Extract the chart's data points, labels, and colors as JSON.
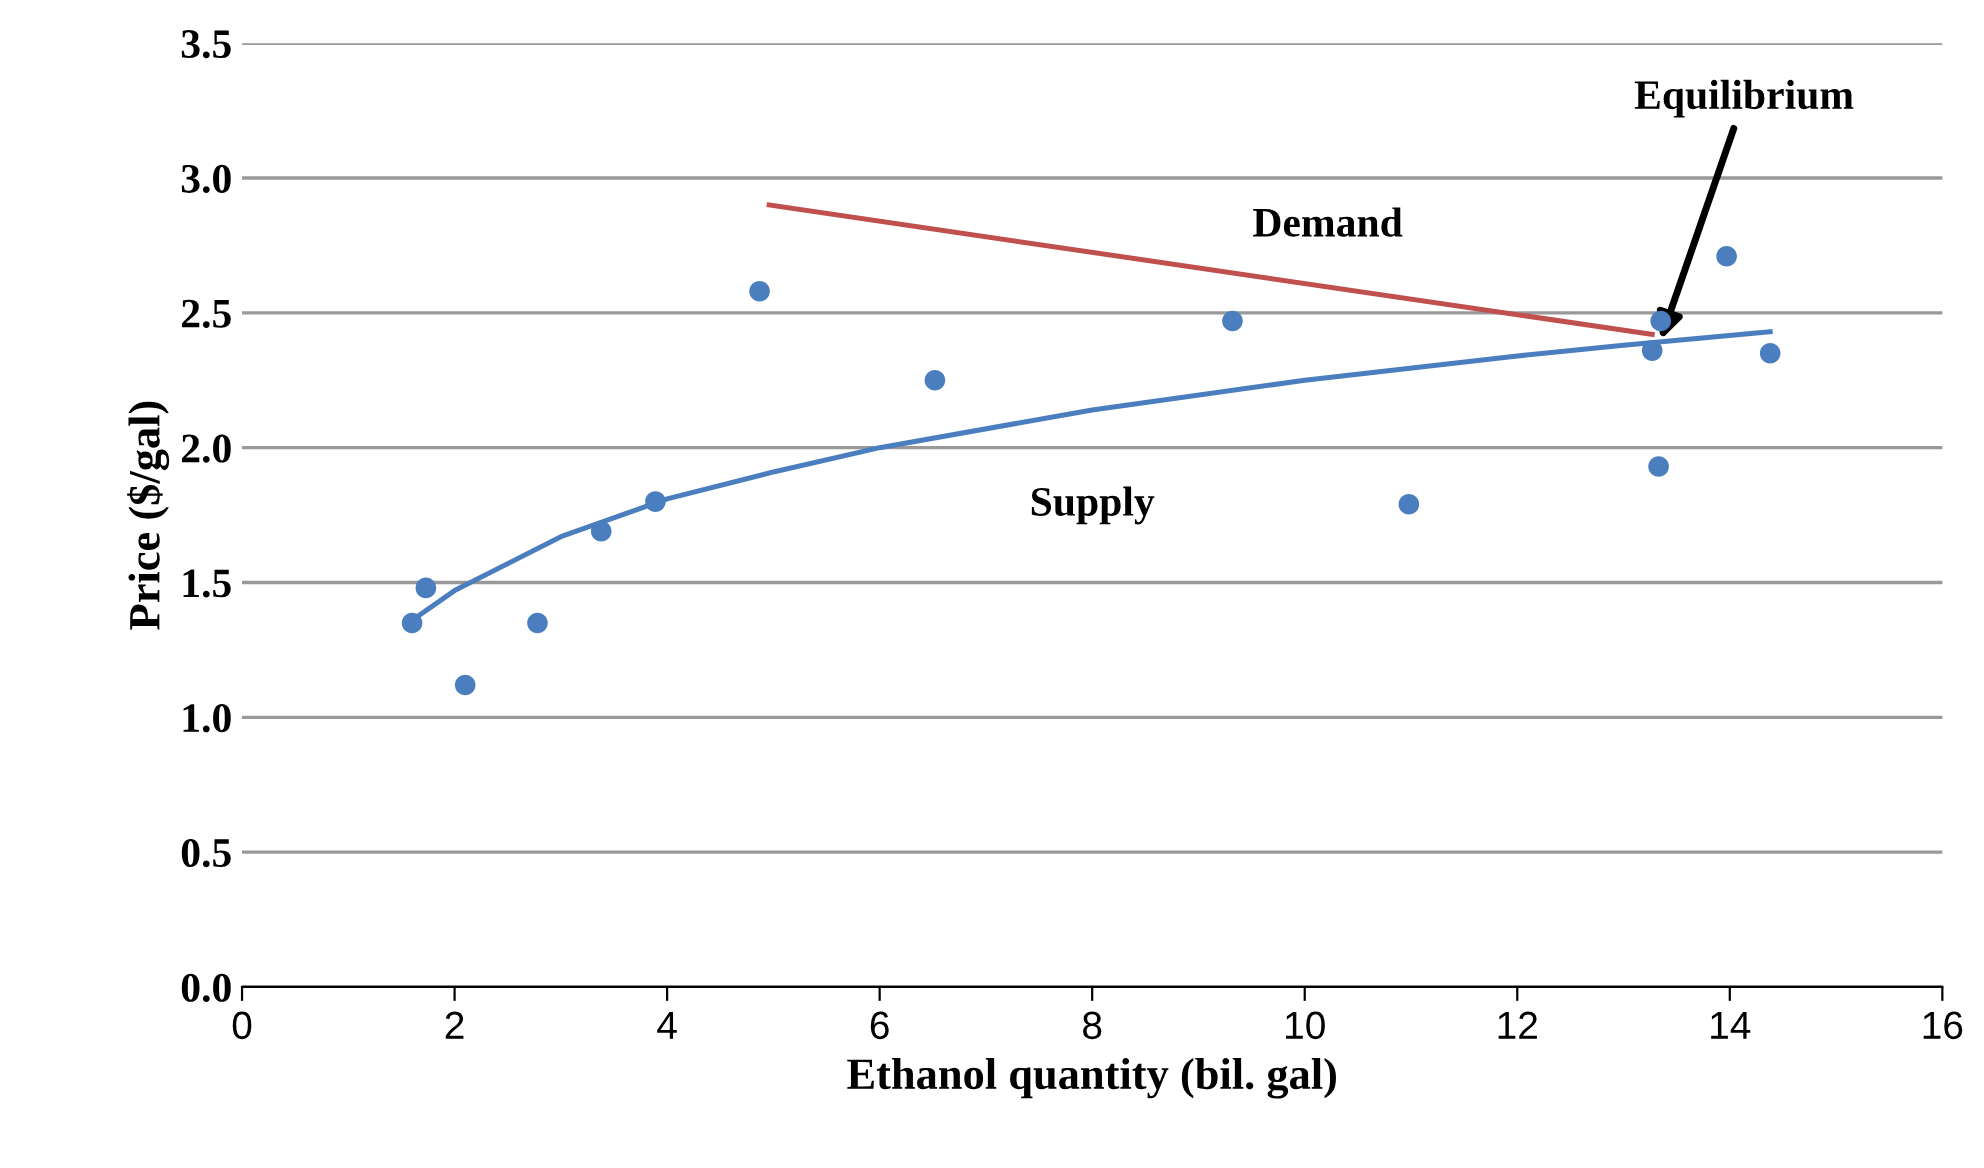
{
  "chart_data": {
    "type": "scatter",
    "xlabel": "Ethanol quantity (bil. gal)",
    "ylabel": "Price ($/gal)",
    "xlim": [
      0,
      16
    ],
    "xticks": [
      0,
      2,
      4,
      6,
      8,
      10,
      12,
      14,
      16
    ],
    "ylim": [
      0,
      3.5
    ],
    "yticks": [
      {
        "value": 0,
        "label": "0.0"
      },
      {
        "value": 0.5,
        "label": "0.5"
      },
      {
        "value": 1,
        "label": "1.0"
      },
      {
        "value": 1.5,
        "label": "1.5"
      },
      {
        "value": 2,
        "label": "2.0"
      },
      {
        "value": 2.5,
        "label": "2.5"
      },
      {
        "value": 3,
        "label": "3.0"
      },
      {
        "value": 3.5,
        "label": "3.5"
      }
    ],
    "grid": "y",
    "series": [
      {
        "type": "scatter",
        "marker": "circle",
        "color": "#4a7ebf",
        "x": [
          1.6,
          1.73,
          2.1,
          2.78,
          3.38,
          3.89,
          4.87,
          6.52,
          9.32,
          10.98,
          13.27,
          13.35,
          13.33,
          13.97,
          14.38
        ],
        "values": [
          1.35,
          1.48,
          1.12,
          1.35,
          1.69,
          1.8,
          2.58,
          2.25,
          2.47,
          1.79,
          2.36,
          2.47,
          1.93,
          2.71,
          2.35
        ]
      },
      {
        "type": "line",
        "name": "Supply",
        "marker": "none",
        "color": "#4a7ebf",
        "line_style": "solid",
        "x": [
          1.6,
          2,
          3,
          4,
          5,
          6,
          8,
          10,
          12,
          13,
          14.38
        ],
        "values": [
          1.36,
          1.47,
          1.67,
          1.81,
          1.91,
          2.0,
          2.14,
          2.25,
          2.34,
          2.38,
          2.43
        ]
      },
      {
        "type": "line",
        "name": "Demand",
        "marker": "none",
        "color": "#c0504d",
        "line_style": "solid",
        "x": [
          4.96,
          13.27
        ],
        "values": [
          2.9,
          2.42
        ]
      }
    ],
    "annotations": [
      {
        "text": "Equilibrium",
        "x": 13.35,
        "y": 2.4
      }
    ]
  }
}
